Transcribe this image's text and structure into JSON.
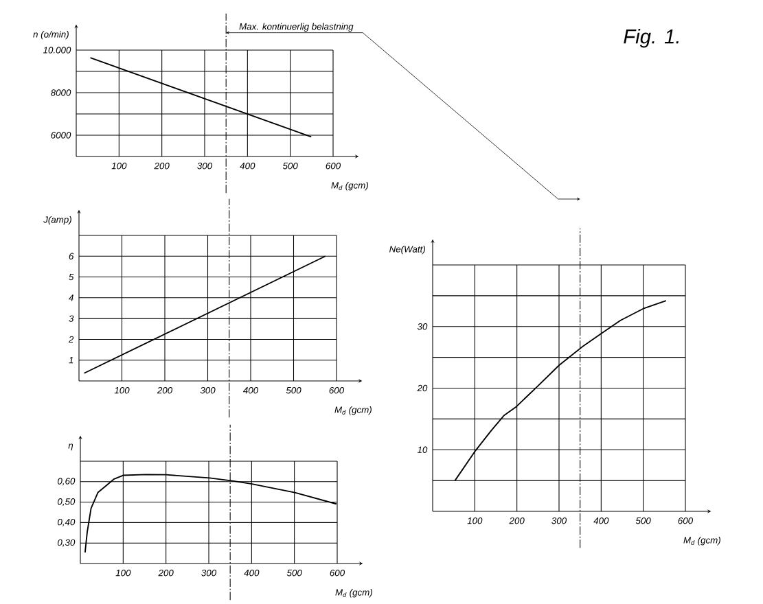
{
  "chart_data": [
    {
      "type": "line",
      "x": [
        33,
        549
      ],
      "values": [
        9640,
        5920
      ],
      "color": "#000000",
      "xlabel": "M$_{d}$ (gcm)",
      "ylabel": "n (o/min)",
      "xlim": [
        0,
        600
      ],
      "ylim": [
        5000,
        10000
      ],
      "xticks": [
        100,
        200,
        300,
        400,
        500,
        600
      ],
      "yticks": [
        {
          "value": 6000,
          "label": "6000"
        },
        {
          "value": 7000,
          "label": null
        },
        {
          "value": 8000,
          "label": "8000"
        },
        {
          "value": 9000,
          "label": null
        },
        {
          "value": 10000,
          "label": "10.000"
        }
      ],
      "grid": true,
      "ref_lines": [
        {
          "axis": "x",
          "value": 350,
          "label": "Max. kontinuerlig belastning",
          "line_style": "dashed"
        }
      ]
    },
    {
      "type": "line",
      "x": [
        12,
        574
      ],
      "values": [
        0.37,
        6.0
      ],
      "color": "#000000",
      "xlabel": "M$_{d}$ (gcm)",
      "ylabel": "J(amp)",
      "xlim": [
        0,
        600
      ],
      "ylim": [
        0,
        7
      ],
      "xticks": [
        100,
        200,
        300,
        400,
        500,
        600
      ],
      "yticks": [
        1,
        2,
        3,
        4,
        5,
        6,
        {
          "value": 7,
          "label": null
        }
      ],
      "grid": true,
      "ref_lines": [
        {
          "axis": "x",
          "value": 350,
          "line_style": "dashed"
        }
      ]
    },
    {
      "type": "line",
      "x": [
        11,
        16,
        25,
        41,
        60,
        78,
        100,
        153,
        200,
        302,
        358,
        401,
        501,
        598
      ],
      "values": [
        0.254,
        0.353,
        0.47,
        0.547,
        0.58,
        0.612,
        0.631,
        0.635,
        0.634,
        0.618,
        0.603,
        0.589,
        0.547,
        0.491
      ],
      "color": "#000000",
      "xlabel": "M$_{d}$ (gcm)",
      "ylabel": "η",
      "xlim": [
        0,
        600
      ],
      "ylim": [
        0.2,
        0.7
      ],
      "xticks": [
        100,
        200,
        300,
        400,
        500,
        600
      ],
      "yticks": [
        {
          "value": 0.3,
          "label": "0,30"
        },
        {
          "value": 0.4,
          "label": "0,40"
        },
        {
          "value": 0.5,
          "label": "0,50"
        },
        {
          "value": 0.6,
          "label": "0,60"
        },
        {
          "value": 0.7,
          "label": null
        }
      ],
      "grid": true,
      "ref_lines": [
        {
          "axis": "x",
          "value": 350,
          "line_style": "dashed"
        }
      ]
    },
    {
      "type": "line",
      "x": [
        53,
        100,
        139,
        170,
        197,
        246,
        300,
        355,
        399,
        446,
        500,
        554
      ],
      "values": [
        5,
        9.7,
        13.1,
        15.6,
        16.9,
        20.1,
        23.7,
        26.7,
        28.8,
        31.0,
        32.9,
        34.2
      ],
      "color": "#000000",
      "xlabel": "M$_{d}$ (gcm)",
      "ylabel": "Ne(Watt)",
      "xlim": [
        0,
        600
      ],
      "ylim": [
        0,
        40
      ],
      "xticks": [
        100,
        200,
        300,
        400,
        500,
        600
      ],
      "yticks": [
        {
          "value": 5,
          "label": null
        },
        10,
        {
          "value": 15,
          "label": null
        },
        20,
        {
          "value": 25,
          "label": null
        },
        30,
        {
          "value": 35,
          "label": null
        },
        {
          "value": 40,
          "label": null
        }
      ],
      "grid": true,
      "ref_lines": [
        {
          "axis": "x",
          "value": 350,
          "line_style": "dashed"
        }
      ],
      "annotations": [
        "Fig. 1."
      ]
    }
  ]
}
